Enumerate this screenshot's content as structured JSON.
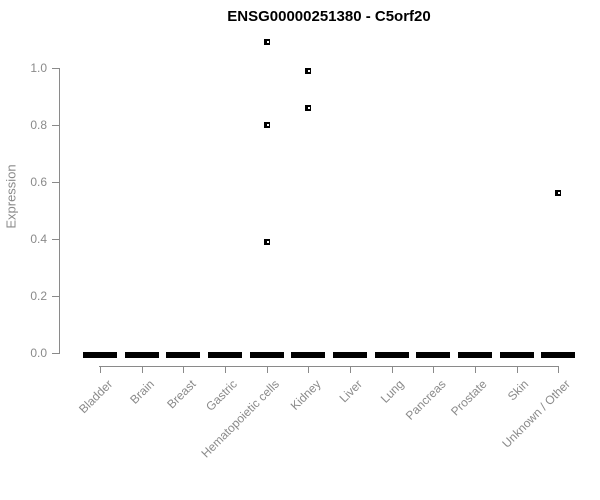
{
  "page": {
    "background": "#ffffff"
  },
  "chart_data": {
    "type": "boxplot",
    "title": "ENSG00000251380 - C5orf20",
    "ylabel": "Expression",
    "xlabel": "",
    "categories": [
      "Bladder",
      "Brain",
      "Breast",
      "Gastric",
      "Hematopoietic cells",
      "Kidney",
      "Liver",
      "Lung",
      "Pancreas",
      "Prostate",
      "Skin",
      "Unknown / Other"
    ],
    "medians": [
      0,
      0,
      0,
      0,
      0,
      0,
      0,
      0,
      0,
      0,
      0,
      0
    ],
    "outliers": [
      {
        "category": "Hematopoietic cells",
        "values": [
          1.09,
          0.8,
          0.39
        ]
      },
      {
        "category": "Kidney",
        "values": [
          0.99,
          0.86
        ]
      },
      {
        "category": "Unknown / Other",
        "values": [
          0.56
        ]
      }
    ],
    "yticks": [
      "0.0",
      "0.2",
      "0.4",
      "0.6",
      "0.8",
      "1.0"
    ],
    "ylim": [
      0.0,
      1.1
    ],
    "grid": false,
    "legend": null,
    "colors": {
      "box": "#000000",
      "point": "#000000",
      "axis": "#8a8a8a",
      "tick_label": "#8a8a8a",
      "title": "#000000"
    }
  }
}
